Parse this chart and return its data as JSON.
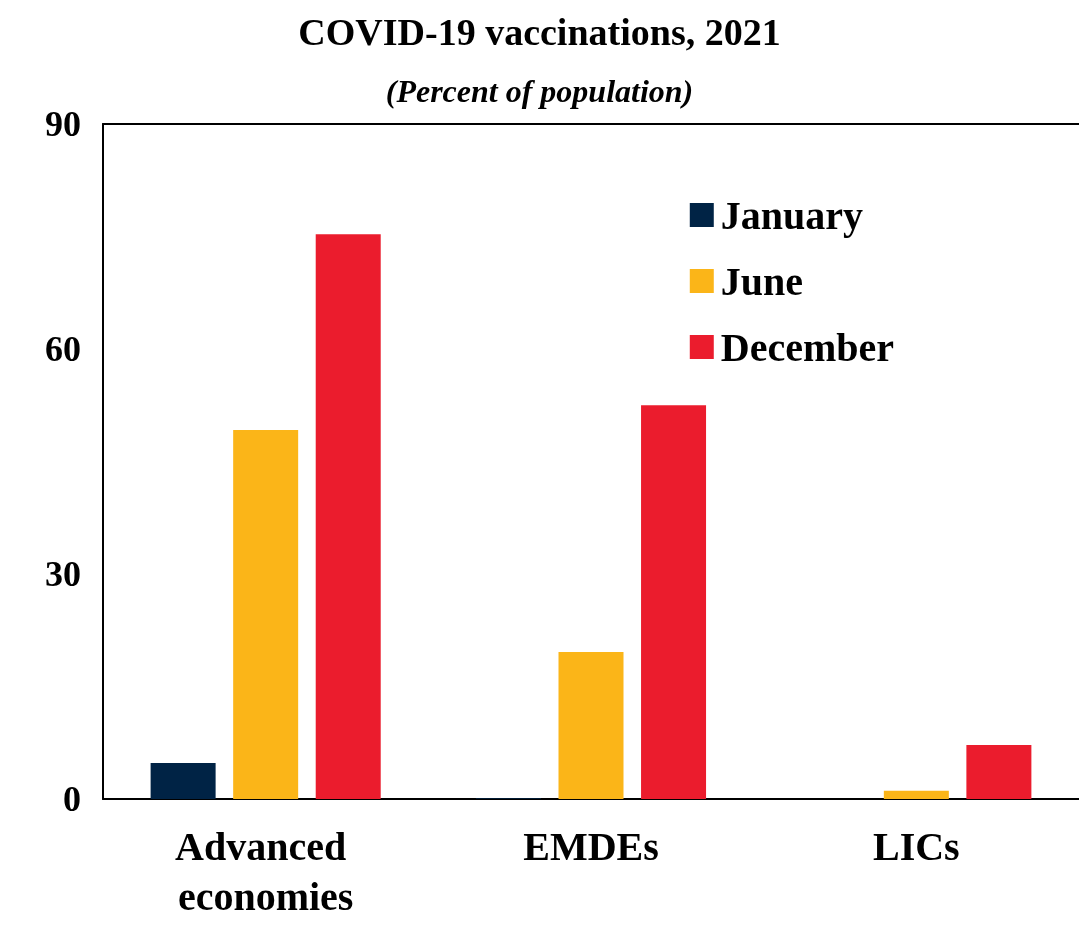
{
  "chart_data": {
    "type": "bar",
    "title": "COVID-19 vaccinations, 2021",
    "subtitle": "(Percent of population)",
    "categories": [
      "Advanced economies",
      "EMDEs",
      "LICs"
    ],
    "series": [
      {
        "name": "January",
        "color": "#002345",
        "values": [
          4.8,
          0.1,
          0
        ]
      },
      {
        "name": "June",
        "color": "#fbb518",
        "values": [
          49.2,
          19.6,
          1.1
        ]
      },
      {
        "name": "December",
        "color": "#eb1c2d",
        "values": [
          75.3,
          52.5,
          7.2
        ]
      }
    ],
    "ylim": [
      0,
      90
    ],
    "yticks": [
      0,
      30,
      60,
      90
    ],
    "grid": false,
    "legend": "top right"
  }
}
